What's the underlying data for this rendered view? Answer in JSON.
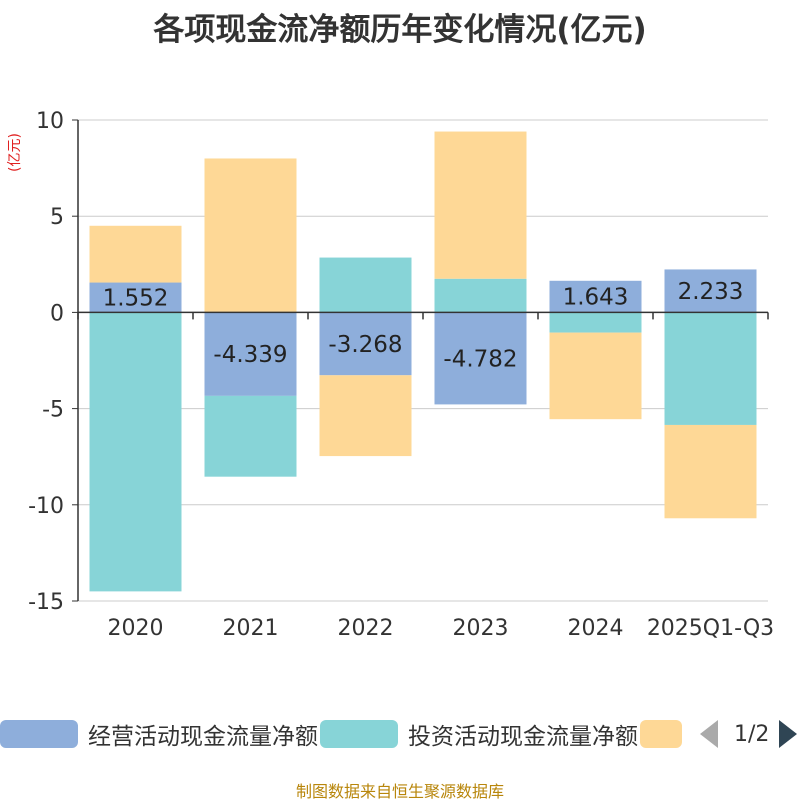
{
  "title": "各项现金流净额历年变化情况(亿元)",
  "unit_label": "(亿元)",
  "source": "制图数据来自恒生聚源数据库",
  "pager": {
    "text": "1/2"
  },
  "colors": {
    "operating": "#8eaedb",
    "investing": "#87d4d7",
    "financing": "#fed896",
    "axis": "#333333",
    "grid": "#cccccc"
  },
  "chart_data": {
    "type": "bar",
    "stacked": true,
    "title": "各项现金流净额历年变化情况(亿元)",
    "ylabel": "(亿元)",
    "ylim": [
      -15,
      10
    ],
    "yticks": [
      10,
      5,
      0,
      -5,
      -10,
      -15
    ],
    "grid": true,
    "legend_position": "bottom",
    "categories": [
      "2020",
      "2021",
      "2022",
      "2023",
      "2024",
      "2025Q1-Q3"
    ],
    "series": [
      {
        "name": "经营活动现金流量净额",
        "color": "#8eaedb",
        "values": [
          1.552,
          -4.339,
          -3.268,
          -4.782,
          1.643,
          2.233
        ],
        "labels_shown": true
      },
      {
        "name": "投资活动现金流量净额",
        "color": "#87d4d7",
        "values": [
          -14.5,
          -4.2,
          2.85,
          1.75,
          -1.05,
          -5.85
        ],
        "labels_shown": false
      },
      {
        "name": "",
        "color": "#fed896",
        "values": [
          2.95,
          8.0,
          -4.2,
          7.65,
          -4.5,
          -4.85
        ],
        "labels_shown": false
      }
    ]
  }
}
